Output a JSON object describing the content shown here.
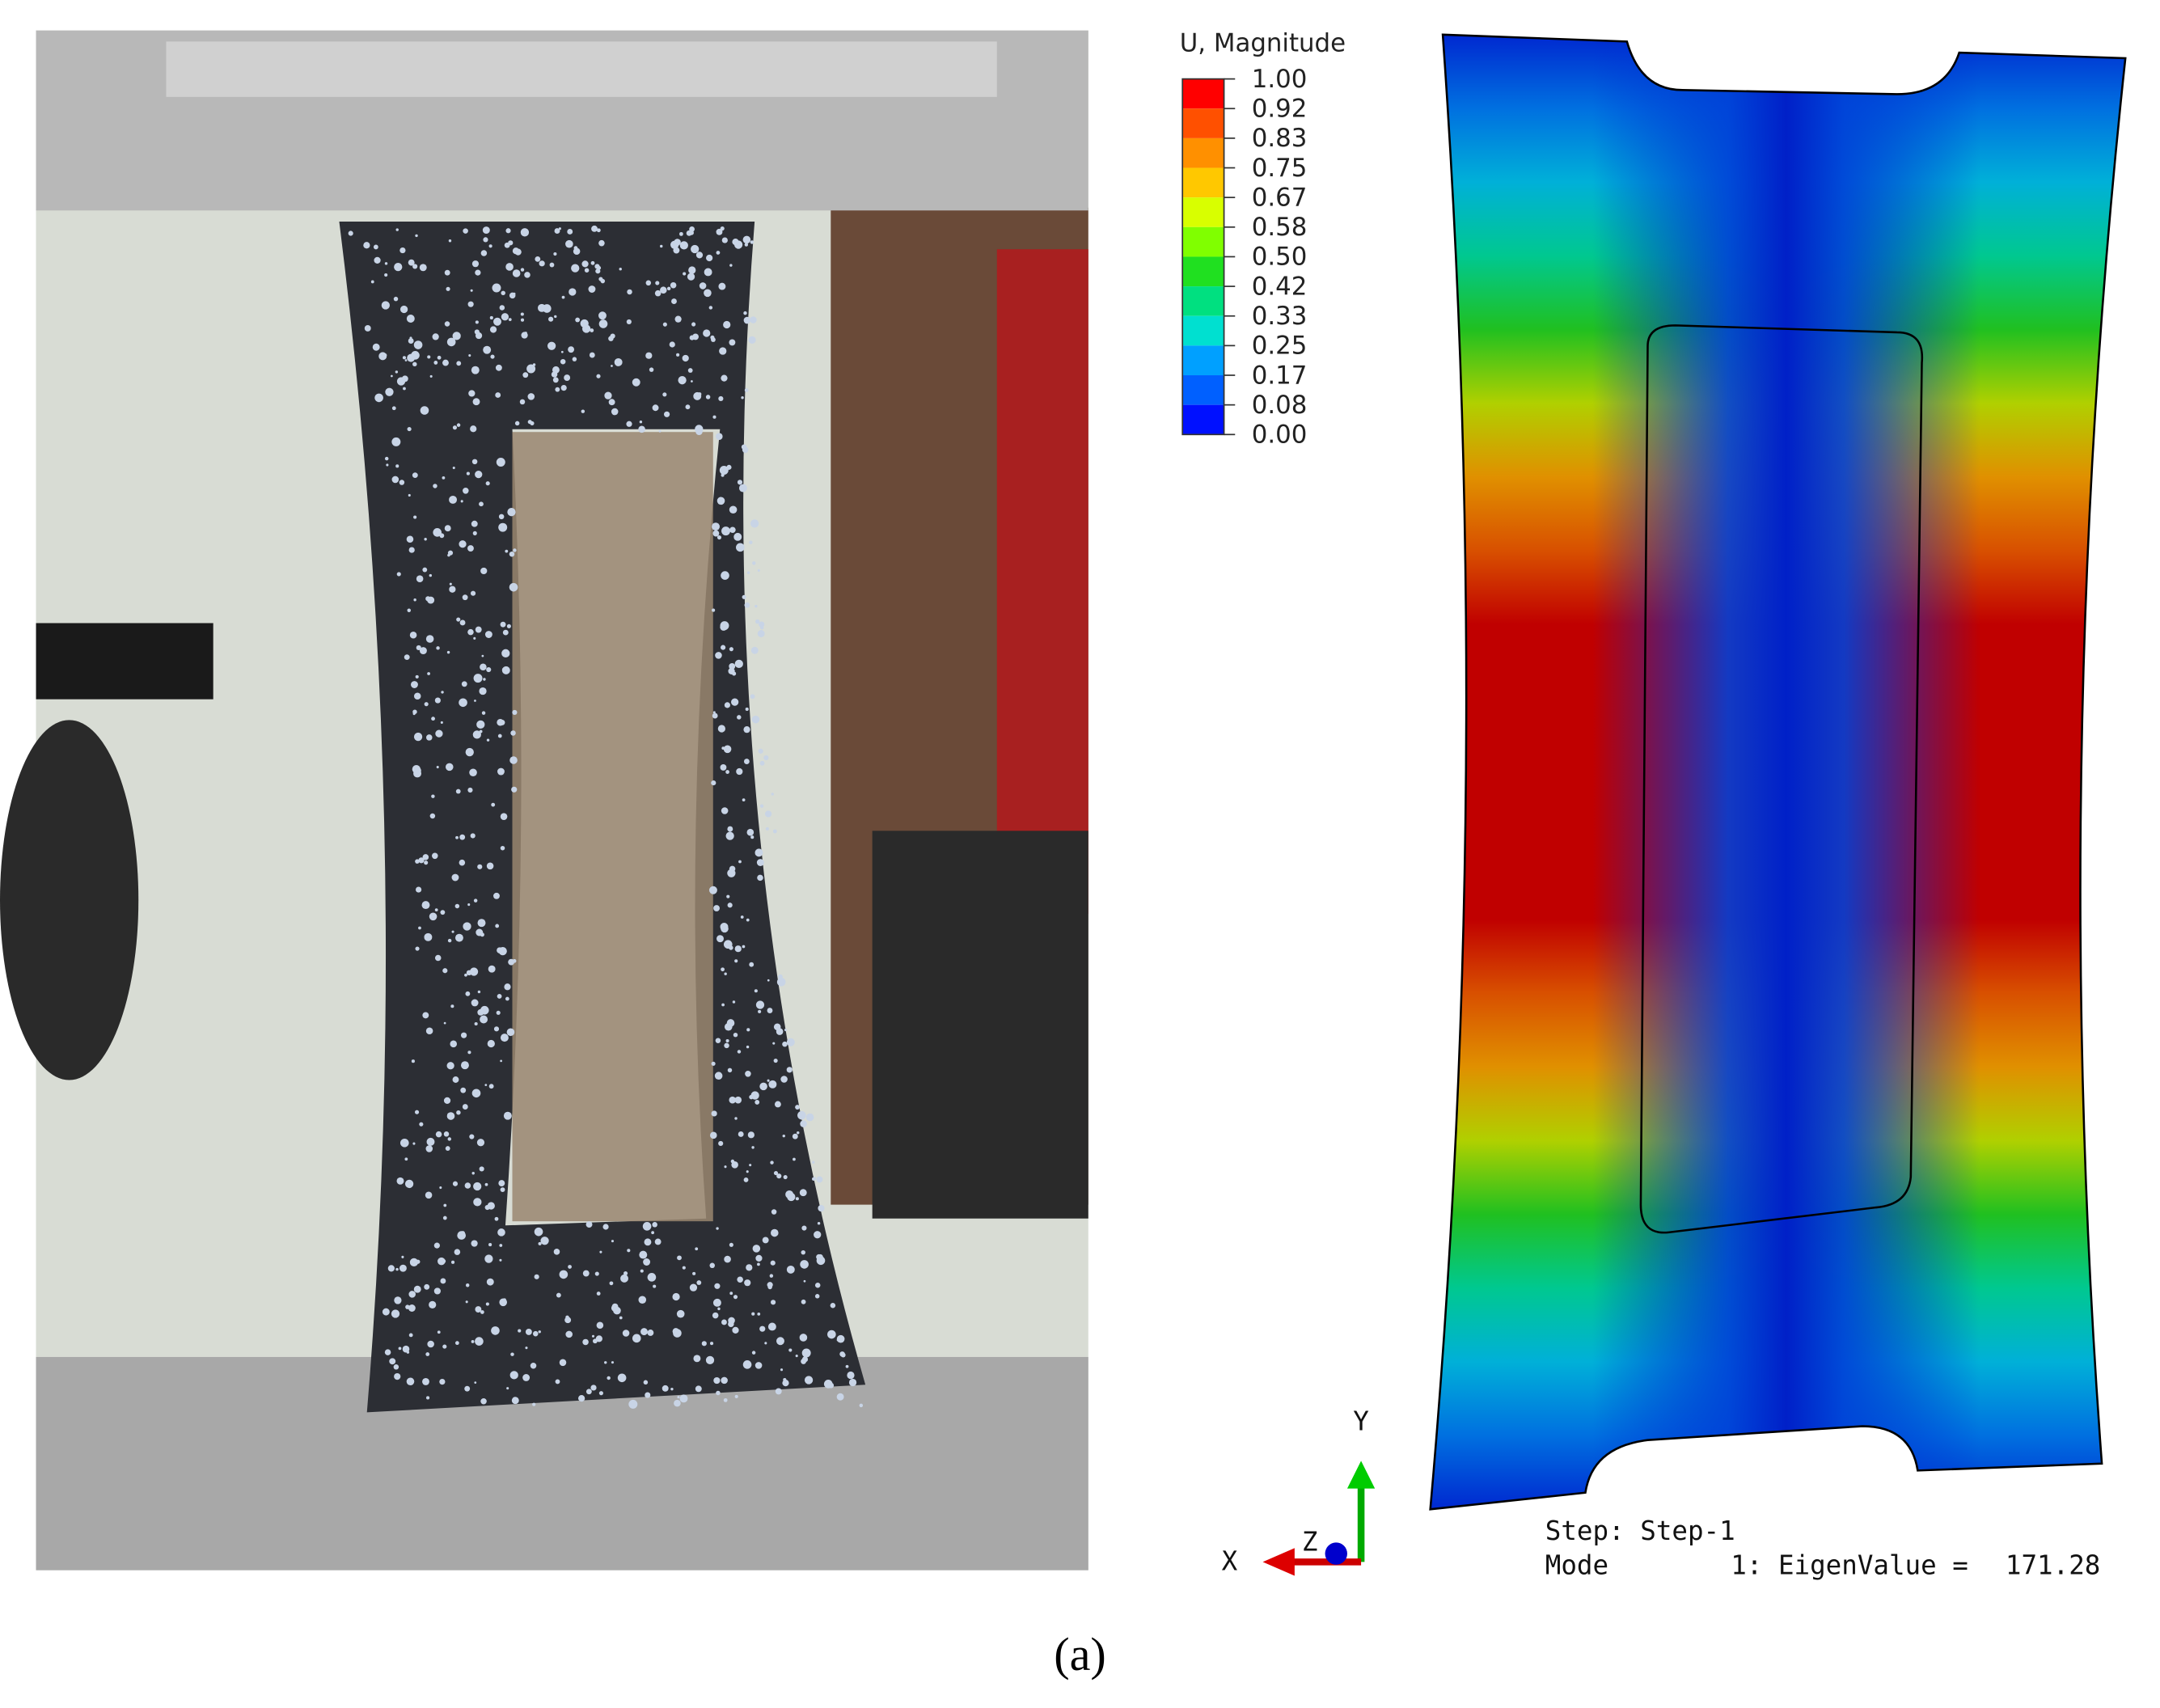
{
  "legend": {
    "title": "U, Magnitude",
    "levels": [
      "1.00",
      "0.92",
      "0.83",
      "0.75",
      "0.67",
      "0.58",
      "0.50",
      "0.42",
      "0.33",
      "0.25",
      "0.17",
      "0.08",
      "0.00"
    ]
  },
  "triad": {
    "y": "Y",
    "x": "X",
    "z": "Z"
  },
  "info": {
    "step": "Step: Step-1",
    "mode_label": "Mode",
    "mode_value": "1: EigenValue =",
    "eigenvalue": "171.28"
  },
  "caption": "(a)"
}
